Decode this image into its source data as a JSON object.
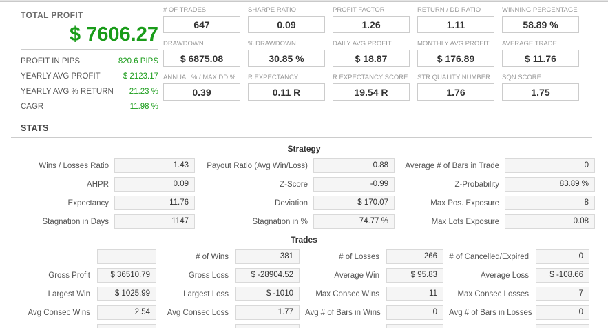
{
  "colors": {
    "green": "#1a9c1a"
  },
  "summary": {
    "title": "TOTAL PROFIT",
    "total": "$ 7606.27",
    "items": [
      {
        "label": "PROFIT IN PIPS",
        "value": "820.6 PIPS"
      },
      {
        "label": "YEARLY AVG PROFIT",
        "value": "$ 2123.17"
      },
      {
        "label": "YEARLY AVG % RETURN",
        "value": "21.23 %"
      },
      {
        "label": "CAGR",
        "value": "11.98 %"
      }
    ]
  },
  "metrics": {
    "rows": [
      [
        {
          "label": "# OF TRADES",
          "value": "647"
        },
        {
          "label": "SHARPE RATIO",
          "value": "0.09"
        },
        {
          "label": "PROFIT FACTOR",
          "value": "1.26"
        },
        {
          "label": "RETURN / DD RATIO",
          "value": "1.11"
        },
        {
          "label": "WINNING PERCENTAGE",
          "value": "58.89 %"
        }
      ],
      [
        {
          "label": "DRAWDOWN",
          "value": "$ 6875.08"
        },
        {
          "label": "% DRAWDOWN",
          "value": "30.85 %"
        },
        {
          "label": "DAILY AVG PROFIT",
          "value": "$ 18.87"
        },
        {
          "label": "MONTHLY AVG PROFIT",
          "value": "$ 176.89"
        },
        {
          "label": "AVERAGE TRADE",
          "value": "$ 11.76"
        }
      ],
      [
        {
          "label": "ANNUAL % / MAX DD %",
          "value": "0.39"
        },
        {
          "label": "R EXPECTANCY",
          "value": "0.11 R"
        },
        {
          "label": "R EXPECTANCY SCORE",
          "value": "19.54 R"
        },
        {
          "label": "STR QUALITY NUMBER",
          "value": "1.76"
        },
        {
          "label": "SQN SCORE",
          "value": "1.75"
        }
      ]
    ]
  },
  "stats": {
    "heading": "STATS",
    "strategy": {
      "title": "Strategy",
      "rows": [
        [
          {
            "label": "Wins / Losses Ratio",
            "value": "1.43"
          },
          {
            "label": "Payout Ratio (Avg Win/Loss)",
            "value": "0.88"
          },
          {
            "label": "Average # of Bars in Trade",
            "value": "0"
          }
        ],
        [
          {
            "label": "AHPR",
            "value": "0.09"
          },
          {
            "label": "Z-Score",
            "value": "-0.99"
          },
          {
            "label": "Z-Probability",
            "value": "83.89 %"
          }
        ],
        [
          {
            "label": "Expectancy",
            "value": "11.76"
          },
          {
            "label": "Deviation",
            "value": "$ 170.07"
          },
          {
            "label": "Max Pos. Exposure",
            "value": "8"
          }
        ],
        [
          {
            "label": "Stagnation in Days",
            "value": "1147"
          },
          {
            "label": "Stagnation in %",
            "value": "74.77 %"
          },
          {
            "label": "Max Lots Exposure",
            "value": "0.08"
          }
        ]
      ]
    },
    "trades": {
      "title": "Trades",
      "rows": [
        [
          {
            "label": "",
            "value": ""
          },
          {
            "label": "# of Wins",
            "value": "381"
          },
          {
            "label": "# of Losses",
            "value": "266"
          },
          {
            "label": "# of Cancelled/Expired",
            "value": "0"
          }
        ],
        [
          {
            "label": "Gross Profit",
            "value": "$ 36510.79"
          },
          {
            "label": "Gross Loss",
            "value": "$ -28904.52"
          },
          {
            "label": "Average Win",
            "value": "$ 95.83"
          },
          {
            "label": "Average Loss",
            "value": "$ -108.66"
          }
        ],
        [
          {
            "label": "Largest Win",
            "value": "$ 1025.99"
          },
          {
            "label": "Largest Loss",
            "value": "$ -1010"
          },
          {
            "label": "Max Consec Wins",
            "value": "11"
          },
          {
            "label": "Max Consec Losses",
            "value": "7"
          }
        ],
        [
          {
            "label": "Avg Consec Wins",
            "value": "2.54"
          },
          {
            "label": "Avg Consec Loss",
            "value": "1.77"
          },
          {
            "label": "Avg # of Bars in Wins",
            "value": "0"
          },
          {
            "label": "Avg # of Bars in Losses",
            "value": "0"
          }
        ]
      ]
    }
  }
}
